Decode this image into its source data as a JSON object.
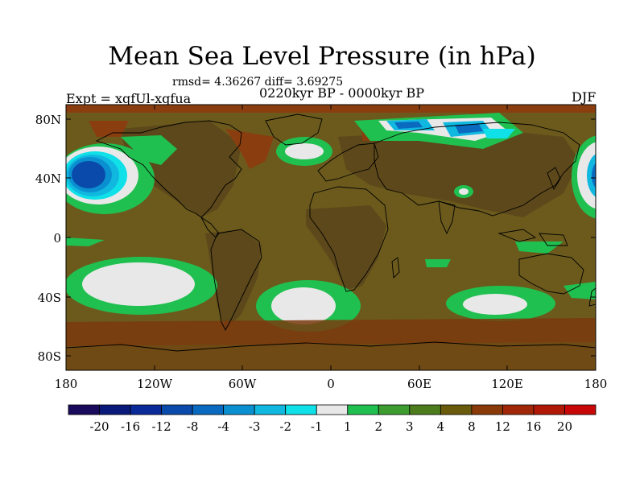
{
  "title": "Mean Sea Level Pressure (in hPa)",
  "stats": "rmsd= 4.36267 diff= 3.69275",
  "expt": "Expt = xqfUl-xqfua",
  "period": "0220kyr BP - 0000kyr BP",
  "season": "DJF",
  "lat_labels": [
    "80N",
    "40N",
    "0",
    "40S",
    "80S"
  ],
  "lon_labels": [
    "180",
    "120W",
    "60W",
    "0",
    "60E",
    "120E",
    "180"
  ],
  "colorbar": {
    "labels": [
      "-20",
      "-16",
      "-12",
      "-8",
      "-4",
      "-3",
      "-2",
      "-1",
      "1",
      "2",
      "3",
      "4",
      "8",
      "12",
      "16",
      "20"
    ],
    "colors": [
      "#1a0a5c",
      "#0a1a7a",
      "#0a2a9a",
      "#0a4aaa",
      "#0a6ac0",
      "#0a90d0",
      "#10b8e0",
      "#10e0e8",
      "#e8e8e8",
      "#20c050",
      "#3c9c30",
      "#4c7c1c",
      "#6a5a0c",
      "#8a3a08",
      "#a02808",
      "#b01808",
      "#c80808"
    ]
  },
  "colors": {
    "background_field": "#6b5a1c",
    "land_field": "#5e4a1a",
    "coast": "#000000"
  }
}
